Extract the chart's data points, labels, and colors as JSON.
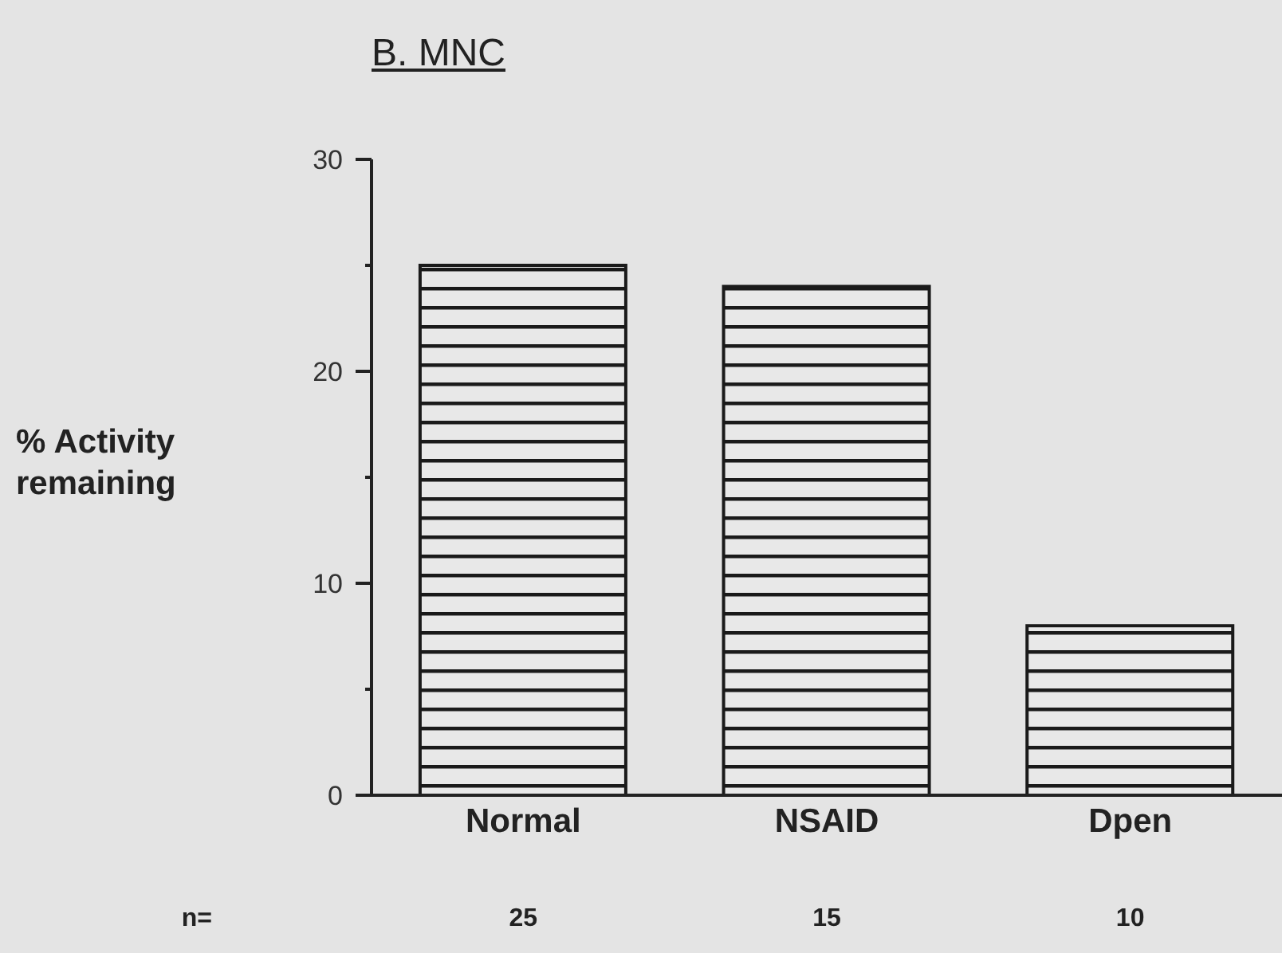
{
  "chart_data": {
    "type": "bar",
    "title": "B. MNC",
    "ylabel": "% Activity remaining",
    "categories": [
      "Normal",
      "NSAID",
      "Dpen"
    ],
    "values": [
      25,
      24,
      8
    ],
    "color": "#1a1a1a",
    "ylim": [
      0,
      30
    ],
    "yticks": [
      0,
      {
        "value": 5,
        "label": null
      },
      10,
      {
        "value": 15,
        "label": null
      },
      20,
      {
        "value": 25,
        "label": null
      },
      30
    ],
    "annotations": [
      "n=",
      "25",
      "15",
      "10"
    ]
  }
}
